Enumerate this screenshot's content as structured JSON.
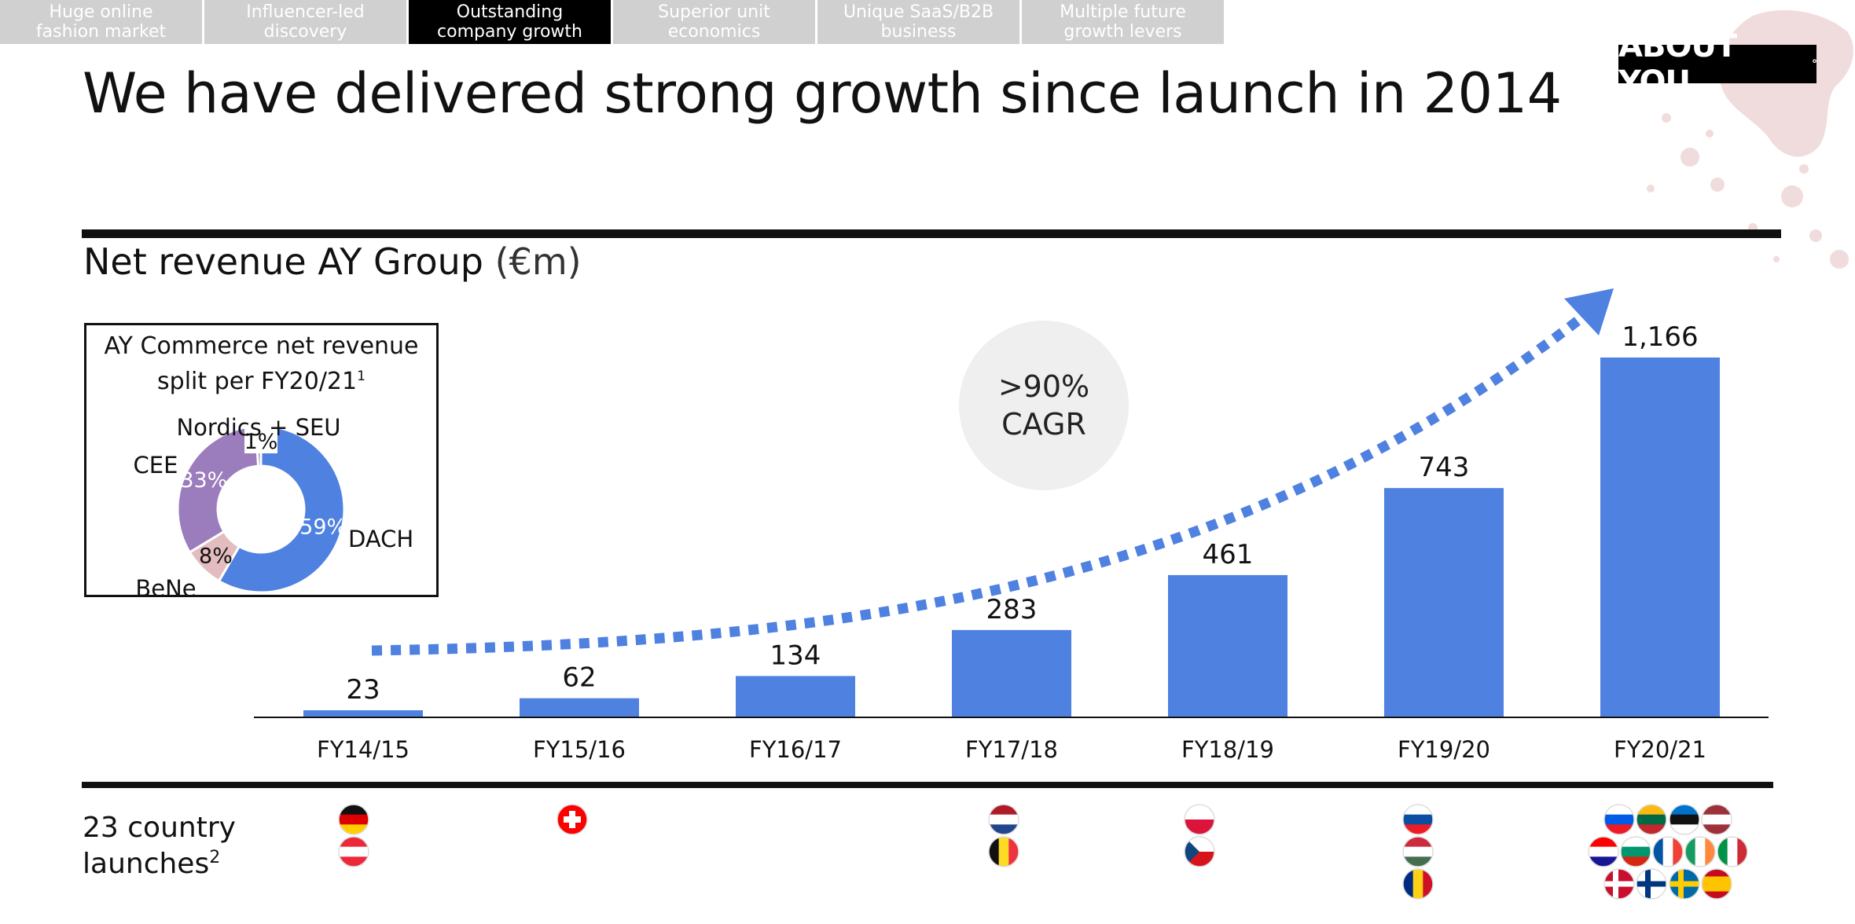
{
  "nav": {
    "tabs": [
      {
        "label": "Huge online\nfashion market",
        "active": false
      },
      {
        "label": "Influencer-led\ndiscovery",
        "active": false
      },
      {
        "label": "Outstanding\ncompany growth",
        "active": true
      },
      {
        "label": "Superior unit\neconomics",
        "active": false
      },
      {
        "label": "Unique SaaS/B2B\nbusiness",
        "active": false
      },
      {
        "label": "Multiple future\ngrowth levers",
        "active": false
      }
    ]
  },
  "logo": {
    "text": "ABOUT YOU",
    "mark": "°"
  },
  "slide": {
    "title": "We have delivered strong growth since launch in 2014",
    "chart_heading": "Net revenue AY Group",
    "chart_unit": "(€m)"
  },
  "cagr": {
    "line1": ">90%",
    "line2": "CAGR"
  },
  "inset": {
    "title": "AY Commerce net revenue\nsplit per FY20/21",
    "footnote": "1"
  },
  "launches": {
    "label": "23 country\nlaunches",
    "footnote": "2"
  },
  "colors": {
    "bar": "#4f81e1",
    "dach": "#4f81e1",
    "cee": "#9b7cbc",
    "bene": "#e3bcbf",
    "nordics": "#9b7cbc"
  },
  "chart_data": [
    {
      "type": "bar",
      "title": "Net revenue AY Group (€m)",
      "categories": [
        "FY14/15",
        "FY15/16",
        "FY16/17",
        "FY17/18",
        "FY18/19",
        "FY19/20",
        "FY20/21"
      ],
      "values": [
        23,
        62,
        134,
        283,
        461,
        743,
        1166
      ],
      "value_labels": [
        "23",
        "62",
        "134",
        "283",
        "461",
        "743",
        "1,166"
      ],
      "ylim": [
        0,
        1166
      ],
      "grid": false,
      "legend": "none",
      "annotations": [
        ">90% CAGR"
      ]
    },
    {
      "type": "pie",
      "title": "AY Commerce net revenue split per FY20/21",
      "labels": [
        "DACH",
        "BeNe",
        "CEE",
        "Nordics + SEU"
      ],
      "values": [
        59,
        8,
        33,
        1
      ],
      "value_labels": [
        "59%",
        "8%",
        "33%",
        "1%"
      ],
      "legend": "none"
    }
  ],
  "flag_columns": [
    {
      "category": "FY14/15",
      "flags": [
        "germany-flag",
        "austria-flag"
      ]
    },
    {
      "category": "FY15/16",
      "flags": [
        "switzerland-flag"
      ]
    },
    {
      "category": "FY16/17",
      "flags": []
    },
    {
      "category": "FY17/18",
      "flags": [
        "netherlands-flag",
        "belgium-flag"
      ]
    },
    {
      "category": "FY18/19",
      "flags": [
        "poland-flag",
        "czech-republic-flag"
      ]
    },
    {
      "category": "FY19/20",
      "flags": [
        "slovakia-flag",
        "hungary-flag",
        "romania-flag"
      ]
    },
    {
      "category": "FY20/21",
      "flags": [
        "slovenia-flag",
        "lithuania-flag",
        "estonia-flag",
        "latvia-flag",
        "croatia-flag",
        "bulgaria-flag",
        "france-flag",
        "ireland-flag",
        "italy-flag",
        "denmark-flag",
        "finland-flag",
        "sweden-flag",
        "spain-flag"
      ]
    }
  ]
}
